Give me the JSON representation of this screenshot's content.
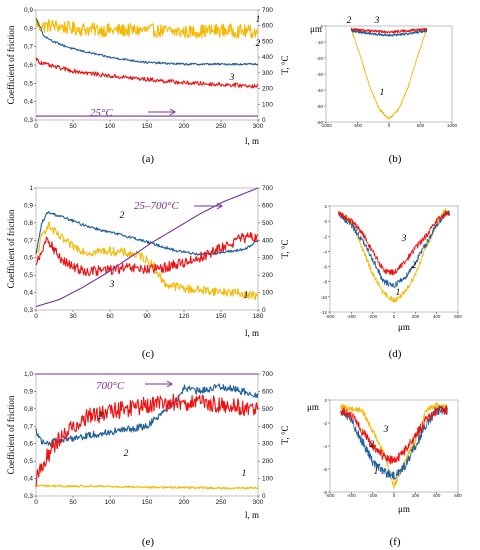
{
  "colors": {
    "yellow": "#f6b800",
    "blue": "#1f5f99",
    "red": "#f01010",
    "purple": "#7a2fa0",
    "ideal_blue": "#3e7fc0"
  },
  "panel_labels": [
    "(a)",
    "(b)",
    "(c)",
    "(d)",
    "(e)",
    "(f)"
  ],
  "chart_data": [
    {
      "id": "a",
      "type": "line",
      "temperature_label": "25°C",
      "xlabel": "l, m",
      "ylabel_left": "Coefficient of friction",
      "ylabel_right": "T, °C",
      "x_ticks": [
        "0",
        "50",
        "100",
        "150",
        "200",
        "250",
        "300"
      ],
      "y_ticks_left": [
        "0,3",
        "0,4",
        "0,5",
        "0,6",
        "0,7",
        "0,8",
        "0,9"
      ],
      "y_ticks_right": [
        "0",
        "100",
        "200",
        "300",
        "400",
        "500",
        "600",
        "700"
      ],
      "xlim": [
        0,
        300
      ],
      "ylim_left": [
        0.3,
        0.95
      ],
      "ylim_right": [
        0,
        700
      ],
      "series": [
        {
          "name": "1",
          "color": "yellow",
          "x": [
            0,
            5,
            20,
            50,
            100,
            150,
            200,
            250,
            300
          ],
          "y": [
            0.88,
            0.85,
            0.86,
            0.84,
            0.83,
            0.83,
            0.82,
            0.83,
            0.82
          ],
          "noise": 0.04
        },
        {
          "name": "2",
          "color": "blue",
          "x": [
            0,
            5,
            10,
            25,
            50,
            100,
            150,
            200,
            250,
            300
          ],
          "y": [
            0.9,
            0.86,
            0.8,
            0.76,
            0.72,
            0.67,
            0.64,
            0.63,
            0.63,
            0.63
          ],
          "noise": 0.006
        },
        {
          "name": "3",
          "color": "red",
          "x": [
            0,
            5,
            20,
            50,
            100,
            150,
            200,
            250,
            300
          ],
          "y": [
            0.67,
            0.64,
            0.62,
            0.59,
            0.56,
            0.54,
            0.52,
            0.51,
            0.5
          ],
          "noise": 0.012
        },
        {
          "name": "T",
          "color": "purple",
          "axis": "right",
          "x": [
            0,
            300
          ],
          "y": [
            25,
            25
          ],
          "noise": 0
        }
      ]
    },
    {
      "id": "b",
      "type": "line",
      "unit_label_top": "μm",
      "x_ticks": [
        "-1000",
        "-500",
        "0",
        "500",
        "1000"
      ],
      "y_ticks": [
        "0",
        "-10",
        "-20",
        "-30",
        "-40",
        "-50",
        "-60"
      ],
      "xlim": [
        -1000,
        1000
      ],
      "ylim": [
        -60,
        2
      ],
      "series": [
        {
          "name": "1",
          "color": "yellow",
          "x": [
            -600,
            -450,
            -300,
            -150,
            0,
            150,
            300,
            450,
            600
          ],
          "y": [
            0,
            -18,
            -38,
            -52,
            -58,
            -52,
            -38,
            -18,
            0
          ],
          "noise": 0.8
        },
        {
          "name": "2",
          "color": "blue",
          "x": [
            -600,
            -300,
            0,
            300,
            600
          ],
          "y": [
            -1,
            -3,
            -4,
            -3,
            -1
          ],
          "noise": 0.8
        },
        {
          "name": "3",
          "color": "red",
          "x": [
            -600,
            -300,
            0,
            300,
            600
          ],
          "y": [
            0,
            -1,
            -2,
            -1,
            0
          ],
          "noise": 0.8
        }
      ]
    },
    {
      "id": "c",
      "type": "line",
      "temperature_label": "25–700°C",
      "xlabel": "l, m",
      "ylabel_left": "Coefficient of friction",
      "ylabel_right": "T, °C",
      "x_ticks": [
        "0",
        "30",
        "60",
        "90",
        "120",
        "150",
        "180"
      ],
      "y_ticks_left": [
        "0,3",
        "0,4",
        "0,5",
        "0,6",
        "0,7",
        "0,8",
        "0,9",
        "1"
      ],
      "y_ticks_right": [
        "0",
        "100",
        "200",
        "300",
        "400",
        "500",
        "600",
        "700"
      ],
      "xlim": [
        0,
        190
      ],
      "ylim_left": [
        0.3,
        1.0
      ],
      "ylim_right": [
        0,
        700
      ],
      "series": [
        {
          "name": "1",
          "color": "yellow",
          "x": [
            0,
            5,
            10,
            20,
            30,
            45,
            60,
            75,
            90,
            100,
            110,
            130,
            150,
            170,
            190
          ],
          "y": [
            0.6,
            0.72,
            0.79,
            0.72,
            0.67,
            0.63,
            0.64,
            0.63,
            0.61,
            0.56,
            0.45,
            0.42,
            0.41,
            0.4,
            0.38
          ],
          "noise": 0.025
        },
        {
          "name": "2",
          "color": "blue",
          "x": [
            0,
            5,
            10,
            20,
            40,
            60,
            80,
            100,
            120,
            140,
            160,
            180,
            190
          ],
          "y": [
            0.62,
            0.8,
            0.86,
            0.84,
            0.79,
            0.75,
            0.72,
            0.68,
            0.64,
            0.62,
            0.63,
            0.65,
            0.7
          ],
          "noise": 0.008
        },
        {
          "name": "3",
          "color": "red",
          "x": [
            0,
            5,
            10,
            20,
            30,
            45,
            60,
            80,
            100,
            120,
            140,
            160,
            175,
            190
          ],
          "y": [
            0.57,
            0.65,
            0.7,
            0.6,
            0.55,
            0.52,
            0.53,
            0.54,
            0.53,
            0.56,
            0.6,
            0.66,
            0.71,
            0.72
          ],
          "noise": 0.03
        },
        {
          "name": "T",
          "color": "purple",
          "axis": "right",
          "x": [
            0,
            20,
            40,
            60,
            80,
            100,
            120,
            140,
            160,
            190
          ],
          "y": [
            20,
            60,
            130,
            210,
            300,
            390,
            470,
            550,
            620,
            700
          ],
          "noise": 0
        }
      ]
    },
    {
      "id": "d",
      "type": "line",
      "unit_label_bottom": "μm",
      "x_ticks": [
        "-600",
        "-400",
        "-200",
        "0",
        "200",
        "400",
        "600"
      ],
      "y_ticks": [
        "2",
        "0",
        "-2",
        "-4",
        "-6",
        "-8",
        "-10",
        "-12"
      ],
      "xlim": [
        -600,
        600
      ],
      "ylim": [
        -12,
        2
      ],
      "series": [
        {
          "name": "1",
          "color": "yellow",
          "x": [
            -520,
            -400,
            -300,
            -200,
            -100,
            0,
            100,
            200,
            300,
            400,
            480,
            520
          ],
          "y": [
            1,
            0,
            -3.5,
            -7,
            -9.5,
            -10.5,
            -9.5,
            -7,
            -3.5,
            -0.5,
            1.5,
            1
          ],
          "noise": 0.35
        },
        {
          "name": "2",
          "color": "blue",
          "x": [
            -520,
            -400,
            -300,
            -200,
            -100,
            0,
            100,
            200,
            300,
            400,
            480,
            520
          ],
          "y": [
            1,
            -0.5,
            -2.5,
            -5,
            -8,
            -8.5,
            -7.5,
            -5.5,
            -3,
            -0.5,
            1,
            1
          ],
          "noise": 0.4
        },
        {
          "name": "3",
          "color": "red",
          "x": [
            -520,
            -400,
            -300,
            -200,
            -100,
            0,
            100,
            200,
            300,
            400,
            480,
            520
          ],
          "y": [
            1,
            0,
            -1.5,
            -4,
            -6.5,
            -6.8,
            -5.5,
            -3.5,
            -2,
            0,
            1,
            1
          ],
          "noise": 0.4
        }
      ]
    },
    {
      "id": "e",
      "type": "line",
      "temperature_label": "700°C",
      "xlabel": "l, m",
      "ylabel_left": "Coefficient of friction",
      "ylabel_right": "T, °C",
      "x_ticks": [
        "0",
        "50",
        "100",
        "150",
        "200",
        "250",
        "300"
      ],
      "y_ticks_left": [
        "0,3",
        "0,4",
        "0,5",
        "0,6",
        "0,7",
        "0,8",
        "0,9",
        "1,0"
      ],
      "y_ticks_right": [
        "0",
        "100",
        "200",
        "300",
        "400",
        "500",
        "600",
        "700"
      ],
      "xlim": [
        0,
        300
      ],
      "ylim_left": [
        0.3,
        1.0
      ],
      "ylim_right": [
        0,
        700
      ],
      "series": [
        {
          "name": "1",
          "color": "yellow",
          "x": [
            0,
            50,
            100,
            150,
            200,
            250,
            300
          ],
          "y": [
            0.36,
            0.355,
            0.355,
            0.35,
            0.35,
            0.345,
            0.345
          ],
          "noise": 0.006
        },
        {
          "name": "2",
          "color": "blue",
          "x": [
            0,
            5,
            15,
            30,
            60,
            90,
            120,
            150,
            170,
            190,
            200,
            220,
            250,
            280,
            300
          ],
          "y": [
            0.69,
            0.62,
            0.6,
            0.62,
            0.64,
            0.66,
            0.68,
            0.7,
            0.78,
            0.85,
            0.92,
            0.9,
            0.93,
            0.9,
            0.88
          ],
          "noise": 0.02
        },
        {
          "name": "3",
          "color": "red",
          "x": [
            0,
            10,
            30,
            50,
            70,
            90,
            120,
            150,
            200,
            250,
            300
          ],
          "y": [
            0.38,
            0.5,
            0.62,
            0.7,
            0.76,
            0.77,
            0.8,
            0.82,
            0.84,
            0.82,
            0.8
          ],
          "noise": 0.05
        },
        {
          "name": "T",
          "color": "purple",
          "axis": "right",
          "x": [
            0,
            300
          ],
          "y": [
            700,
            700
          ],
          "noise": 0
        }
      ]
    },
    {
      "id": "f",
      "type": "line",
      "unit_label_top": "μm",
      "unit_label_bottom": "μm",
      "x_ticks": [
        "-600",
        "-400",
        "-200",
        "0",
        "200",
        "400",
        "600"
      ],
      "y_ticks": [
        "0",
        "-2",
        "-4",
        "-6",
        "-8"
      ],
      "xlim": [
        -600,
        600
      ],
      "ylim": [
        -8,
        1
      ],
      "series": [
        {
          "name": "1",
          "color": "yellow",
          "x": [
            -500,
            -300,
            -200,
            -100,
            0,
            100,
            200,
            300,
            400,
            500
          ],
          "y": [
            0.3,
            0,
            -2,
            -4,
            -7.5,
            -5,
            -3,
            0,
            0.5,
            0.3
          ],
          "noise": 0.3
        },
        {
          "name": "2",
          "color": "blue",
          "x": [
            -500,
            -400,
            -300,
            -200,
            -100,
            0,
            100,
            200,
            300,
            400,
            500
          ],
          "y": [
            0,
            -1,
            -3,
            -5,
            -6,
            -6.5,
            -5.5,
            -3.5,
            -1.5,
            0,
            0
          ],
          "noise": 0.45
        },
        {
          "name": "3",
          "color": "red",
          "x": [
            -500,
            -400,
            -300,
            -200,
            -100,
            0,
            100,
            200,
            300,
            400,
            500
          ],
          "y": [
            0,
            -0.5,
            -2,
            -3.5,
            -4.5,
            -5,
            -4,
            -2.5,
            -1,
            0,
            0
          ],
          "noise": 0.45
        }
      ]
    }
  ]
}
